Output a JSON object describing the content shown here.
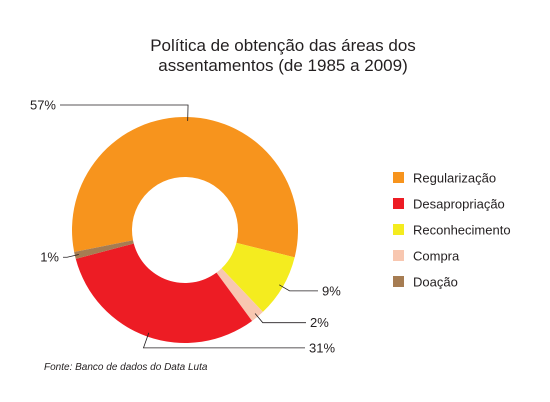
{
  "chart_data": {
    "type": "pie",
    "variant": "donut",
    "title_lines": [
      "Política de obtenção das áreas dos",
      "assentamentos (de 1985 a 2009)"
    ],
    "categories": [
      "Regularização",
      "Desapropriação",
      "Reconhecimento",
      "Compra",
      "Doação"
    ],
    "values": [
      57,
      31,
      9,
      2,
      1
    ],
    "value_labels": [
      "57%",
      "31%",
      "9%",
      "2%",
      "1%"
    ],
    "colors": [
      "#f7941d",
      "#ed1c24",
      "#f4ec1f",
      "#f8c7b0",
      "#a67c52"
    ],
    "legend_position": "right",
    "source": "Fonte: Banco de dados do Data Luta"
  }
}
